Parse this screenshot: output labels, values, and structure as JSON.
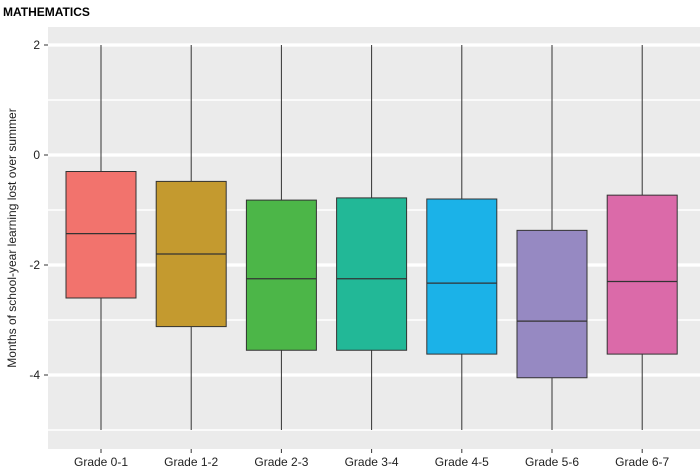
{
  "chart_data": {
    "type": "box",
    "title": "MATHEMATICS",
    "xlabel": "",
    "ylabel": "Months of school-year learning lost over summer",
    "ylim": [
      -5.0,
      2.4
    ],
    "yticks": [
      2,
      0,
      -2,
      -4
    ],
    "grid": true,
    "categories": [
      "Grade 0-1",
      "Grade 1-2",
      "Grade 2-3",
      "Grade 3-4",
      "Grade 4-5",
      "Grade 5-6",
      "Grade 6-7"
    ],
    "boxes": [
      {
        "category": "Grade 0-1",
        "min": -5.0,
        "q1": -2.6,
        "median": -1.43,
        "q3": -0.3,
        "max": 2.0,
        "color": "#f2736d"
      },
      {
        "category": "Grade 1-2",
        "min": -5.0,
        "q1": -3.12,
        "median": -1.8,
        "q3": -0.48,
        "max": 2.0,
        "color": "#c49a2f"
      },
      {
        "category": "Grade 2-3",
        "min": -5.0,
        "q1": -3.55,
        "median": -2.25,
        "q3": -0.82,
        "max": 2.0,
        "color": "#4cb648"
      },
      {
        "category": "Grade 3-4",
        "min": -5.0,
        "q1": -3.55,
        "median": -2.25,
        "q3": -0.78,
        "max": 2.0,
        "color": "#22b897"
      },
      {
        "category": "Grade 4-5",
        "min": -5.0,
        "q1": -3.62,
        "median": -2.33,
        "q3": -0.8,
        "max": 2.0,
        "color": "#1bb2e8"
      },
      {
        "category": "Grade 5-6",
        "min": -5.0,
        "q1": -4.05,
        "median": -3.02,
        "q3": -1.37,
        "max": 2.0,
        "color": "#9689c2"
      },
      {
        "category": "Grade 6-7",
        "min": -5.0,
        "q1": -3.62,
        "median": -2.3,
        "q3": -0.73,
        "max": 2.0,
        "color": "#db6aa9"
      }
    ],
    "colors": {
      "panel_background": "#ebebeb",
      "grid_line": "#ffffff",
      "whisker": "#333333"
    }
  }
}
